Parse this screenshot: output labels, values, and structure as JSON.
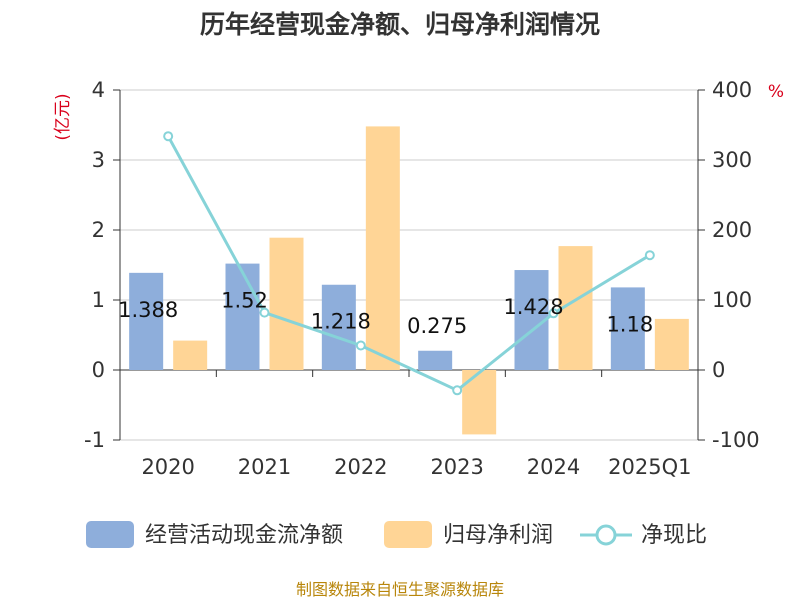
{
  "chart_data": {
    "type": "bar",
    "title": "历年经营现金净额、归母净利润情况",
    "categories": [
      "2020",
      "2021",
      "2022",
      "2023",
      "2024",
      "2025Q1"
    ],
    "series": [
      {
        "name": "经营活动现金流净额",
        "type": "bar",
        "axis": "left",
        "color": "#8eaedb",
        "values": [
          1.388,
          1.52,
          1.218,
          0.275,
          1.428,
          1.18
        ]
      },
      {
        "name": "归母净利润",
        "type": "bar",
        "axis": "left",
        "color": "#ffd596",
        "values": [
          0.42,
          1.89,
          3.48,
          -0.92,
          1.77,
          0.73
        ]
      },
      {
        "name": "净现比",
        "type": "line",
        "axis": "right",
        "color": "#86d3d8",
        "values": [
          334,
          82,
          35,
          -29,
          81,
          164
        ]
      }
    ],
    "data_labels": [
      "1.388",
      "1.52",
      "1.218",
      "0.275",
      "1.428",
      "1.18"
    ],
    "y_left": {
      "unit": "(亿元)",
      "ticks": [
        "4",
        "3",
        "2",
        "1",
        "0",
        "-1"
      ],
      "range": [
        -1,
        4
      ]
    },
    "y_right": {
      "unit": "%",
      "ticks": [
        "400",
        "300",
        "200",
        "100",
        "0",
        "-100"
      ],
      "range": [
        -100,
        400
      ]
    },
    "grid": true,
    "legend_position": "bottom"
  },
  "source": "制图数据来自恒生聚源数据库"
}
